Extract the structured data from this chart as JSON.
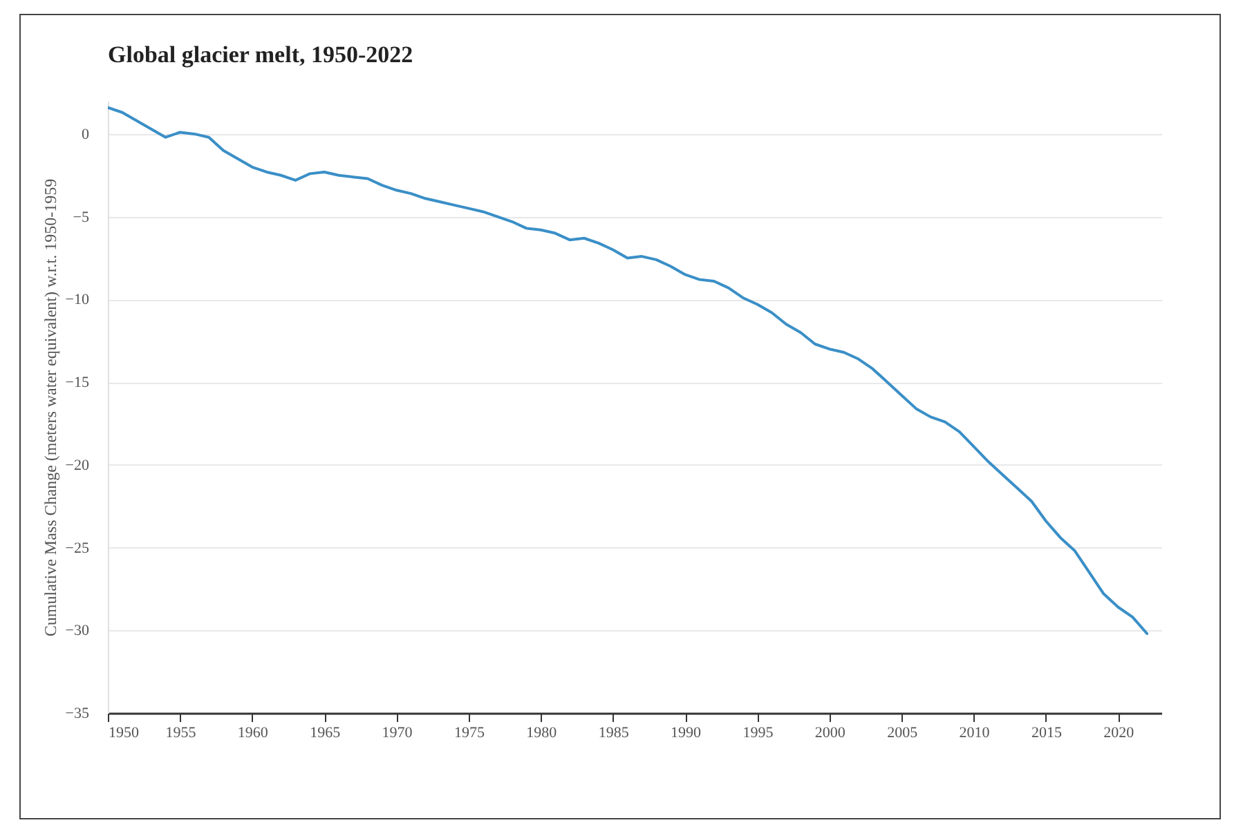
{
  "chart_data": {
    "type": "line",
    "title": "Global glacier melt, 1950-2022",
    "ylabel": "Cumulative Mass Change (meters water equivalent) w.r.t. 1950-1959",
    "x": [
      1950,
      1951,
      1952,
      1953,
      1954,
      1955,
      1956,
      1957,
      1958,
      1959,
      1960,
      1961,
      1962,
      1963,
      1964,
      1965,
      1966,
      1967,
      1968,
      1969,
      1970,
      1971,
      1972,
      1973,
      1974,
      1975,
      1976,
      1977,
      1978,
      1979,
      1980,
      1981,
      1982,
      1983,
      1984,
      1985,
      1986,
      1987,
      1988,
      1989,
      1990,
      1991,
      1992,
      1993,
      1994,
      1995,
      1996,
      1997,
      1998,
      1999,
      2000,
      2001,
      2002,
      2003,
      2004,
      2005,
      2006,
      2007,
      2008,
      2009,
      2010,
      2011,
      2012,
      2013,
      2014,
      2015,
      2016,
      2017,
      2018,
      2019,
      2020,
      2021,
      2022
    ],
    "series": [
      {
        "color": "#3a8fc7",
        "values": [
          1.6,
          1.3,
          0.8,
          0.3,
          -0.2,
          0.1,
          0.0,
          -0.2,
          -1.0,
          -1.5,
          -2.0,
          -2.3,
          -2.5,
          -2.8,
          -2.4,
          -2.3,
          -2.5,
          -2.6,
          -2.7,
          -3.1,
          -3.4,
          -3.6,
          -3.9,
          -4.1,
          -4.3,
          -4.5,
          -4.7,
          -5.0,
          -5.3,
          -5.7,
          -5.8,
          -6.0,
          -6.4,
          -6.3,
          -6.6,
          -7.0,
          -7.5,
          -7.4,
          -7.6,
          -8.0,
          -8.5,
          -8.8,
          -8.9,
          -9.3,
          -9.9,
          -10.3,
          -10.8,
          -11.5,
          -12.0,
          -12.7,
          -13.0,
          -13.2,
          -13.6,
          -14.2,
          -15.0,
          -15.8,
          -16.6,
          -17.1,
          -17.4,
          -18.0,
          -18.9,
          -19.8,
          -20.6,
          -21.4,
          -22.2,
          -23.4,
          -24.4,
          -25.2,
          -26.5,
          -27.8,
          -28.6,
          -29.2,
          -30.2
        ]
      }
    ],
    "xlim": [
      1950,
      2023
    ],
    "xticks": [
      1950,
      1955,
      1960,
      1965,
      1970,
      1975,
      1980,
      1985,
      1990,
      1995,
      2000,
      2005,
      2010,
      2015,
      2020
    ],
    "ylim": [
      -35,
      2
    ],
    "yticks": [
      -35,
      -30,
      -25,
      -20,
      -15,
      -10,
      -5,
      0
    ],
    "grid": "y",
    "marker": "none",
    "line_style": "solid"
  }
}
